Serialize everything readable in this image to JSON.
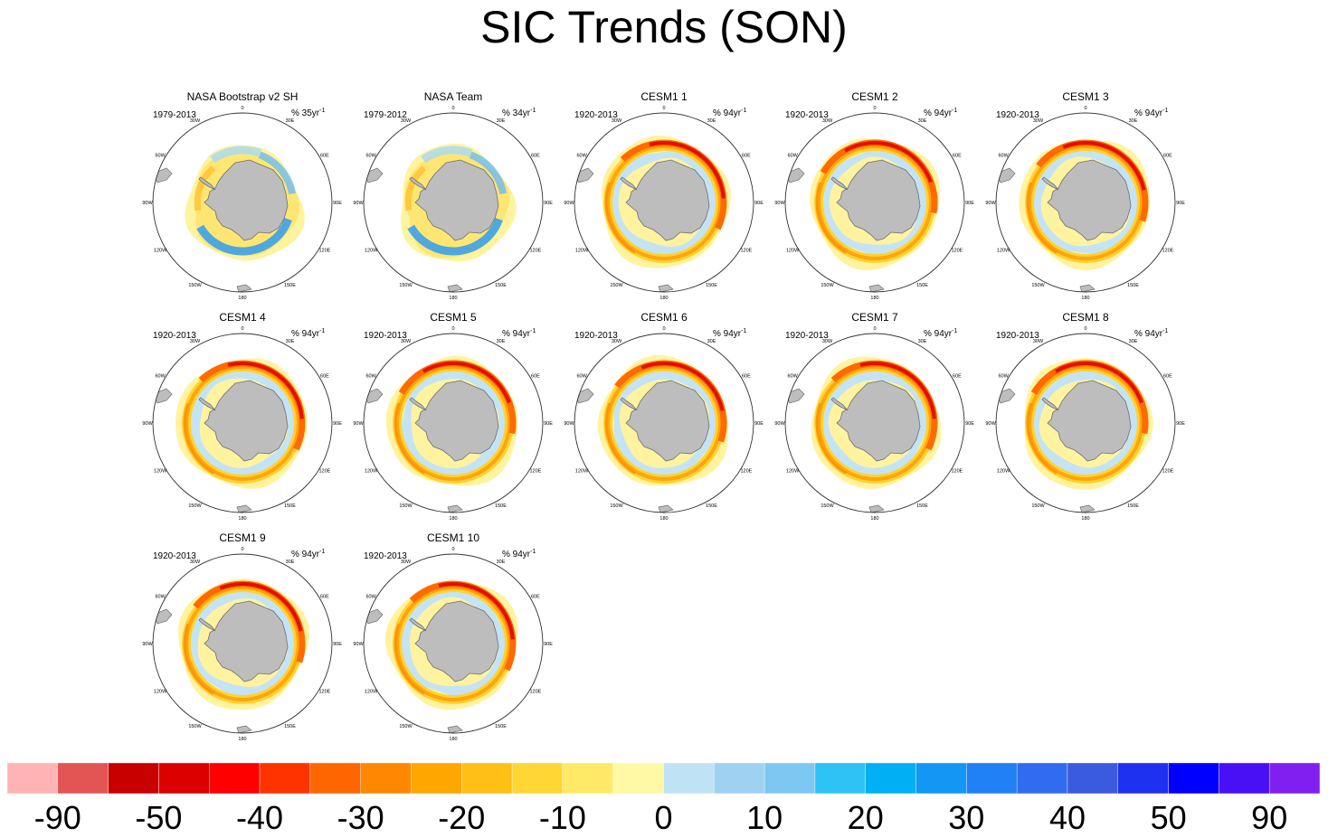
{
  "title": "SIC Trends (SON)",
  "colors": {
    "land": "#bdbdbd",
    "land_stroke": "#6e6e6e",
    "ring_fill": "#ffffff",
    "ring_stroke": "#333333"
  },
  "meridian_labels": [
    "0",
    "30E",
    "60E",
    "90E",
    "120E",
    "150E",
    "180",
    "150W",
    "120W",
    "90W",
    "60W",
    "30W"
  ],
  "panels": [
    {
      "title": "NASA Bootstrap v2 SH",
      "period": "1979-2013",
      "units_prefix": "% 35yr",
      "units_exp": "-1",
      "pattern": "obs"
    },
    {
      "title": "NASA Team",
      "period": "1979-2012",
      "units_prefix": "% 34yr",
      "units_exp": "-1",
      "pattern": "obs"
    },
    {
      "title": "CESM1 1",
      "period": "1920-2013",
      "units_prefix": "% 94yr",
      "units_exp": "-1",
      "pattern": "model"
    },
    {
      "title": "CESM1 2",
      "period": "1920-2013",
      "units_prefix": "% 94yr",
      "units_exp": "-1",
      "pattern": "model"
    },
    {
      "title": "CESM1 3",
      "period": "1920-2013",
      "units_prefix": "% 94yr",
      "units_exp": "-1",
      "pattern": "model"
    },
    {
      "title": "CESM1 4",
      "period": "1920-2013",
      "units_prefix": "% 94yr",
      "units_exp": "-1",
      "pattern": "model"
    },
    {
      "title": "CESM1 5",
      "period": "1920-2013",
      "units_prefix": "% 94yr",
      "units_exp": "-1",
      "pattern": "model"
    },
    {
      "title": "CESM1 6",
      "period": "1920-2013",
      "units_prefix": "% 94yr",
      "units_exp": "-1",
      "pattern": "model"
    },
    {
      "title": "CESM1 7",
      "period": "1920-2013",
      "units_prefix": "% 94yr",
      "units_exp": "-1",
      "pattern": "model"
    },
    {
      "title": "CESM1 8",
      "period": "1920-2013",
      "units_prefix": "% 94yr",
      "units_exp": "-1",
      "pattern": "model"
    },
    {
      "title": "CESM1 9",
      "period": "1920-2013",
      "units_prefix": "% 94yr",
      "units_exp": "-1",
      "pattern": "model"
    },
    {
      "title": "CESM1 10",
      "period": "1920-2013",
      "units_prefix": "% 94yr",
      "units_exp": "-1",
      "pattern": "model"
    }
  ],
  "colorbar": {
    "colors": [
      "#ffb3b3",
      "#e35454",
      "#c80000",
      "#dc0000",
      "#ff0000",
      "#ff3300",
      "#ff6600",
      "#ff8800",
      "#ffa600",
      "#ffbf14",
      "#ffd633",
      "#ffe966",
      "#fff9a6",
      "#bfe3f5",
      "#9fd2f0",
      "#7cc8f2",
      "#2fc2f5",
      "#00b0f5",
      "#1297f5",
      "#2080f5",
      "#2f6cf0",
      "#3a5ae0",
      "#1e30f0",
      "#0000ff",
      "#4a10f5",
      "#8020f0"
    ],
    "tick_labels": [
      "-90",
      "-50",
      "-40",
      "-30",
      "-20",
      "-10",
      "0",
      "10",
      "20",
      "30",
      "40",
      "50",
      "90"
    ]
  }
}
